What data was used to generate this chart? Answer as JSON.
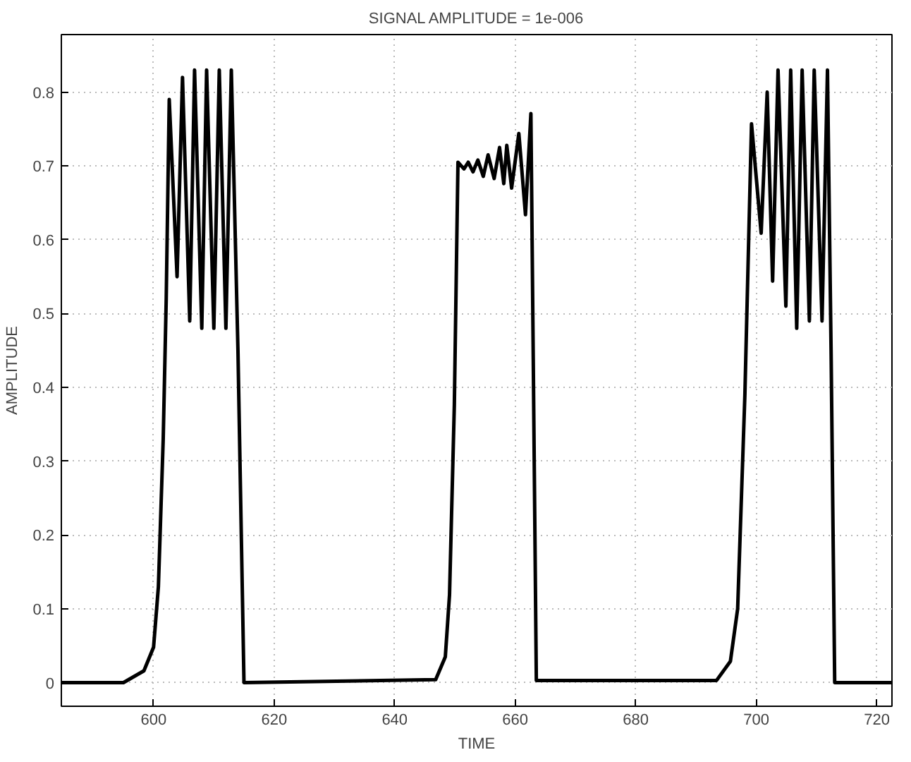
{
  "chart_data": {
    "type": "line",
    "title": "SIGNAL AMPLITUDE = 1e-006",
    "xlabel": "TIME",
    "ylabel": "AMPLITUDE",
    "xlim": [
      584.7,
      722.5
    ],
    "ylim": [
      -0.032,
      0.878
    ],
    "xticks": [
      600,
      620,
      640,
      660,
      680,
      700,
      720
    ],
    "yticks": [
      0,
      0.1,
      0.2,
      0.3,
      0.4,
      0.5,
      0.6,
      0.7,
      0.8
    ],
    "grid": true,
    "line_style": "solid",
    "series": [
      {
        "color": "#000000",
        "x": [
          584.7,
          595,
          598.4,
          600,
          600.8,
          601.6,
          602.1,
          602.6,
          603.9,
          604.8,
          606.0,
          606.8,
          608.0,
          608.8,
          610.0,
          610.9,
          612.0,
          612.9,
          614.0,
          615.0,
          646.8,
          648.4,
          649.1,
          649.9,
          650.5,
          651.5,
          652.2,
          653.0,
          653.8,
          654.7,
          655.5,
          656.5,
          657.4,
          658.1,
          658.6,
          659.4,
          660.6,
          661.7,
          662.6,
          663.5,
          693.4,
          695.7,
          696.9,
          698.1,
          699.2,
          700.8,
          701.8,
          702.7,
          703.6,
          704.9,
          705.7,
          706.7,
          707.6,
          708.8,
          709.6,
          710.9,
          711.8,
          712.4,
          713.0,
          722.5
        ],
        "values": [
          0,
          0,
          0.016,
          0.048,
          0.13,
          0.33,
          0.52,
          0.79,
          0.55,
          0.82,
          0.49,
          0.83,
          0.48,
          0.83,
          0.48,
          0.83,
          0.48,
          0.83,
          0.45,
          0,
          0.004,
          0.035,
          0.119,
          0.377,
          0.705,
          0.696,
          0.705,
          0.692,
          0.708,
          0.686,
          0.715,
          0.683,
          0.725,
          0.676,
          0.728,
          0.67,
          0.744,
          0.634,
          0.771,
          0.003,
          0.003,
          0.029,
          0.1,
          0.39,
          0.757,
          0.609,
          0.8,
          0.544,
          0.83,
          0.51,
          0.83,
          0.48,
          0.83,
          0.49,
          0.83,
          0.49,
          0.83,
          0.45,
          0,
          0
        ]
      }
    ]
  }
}
